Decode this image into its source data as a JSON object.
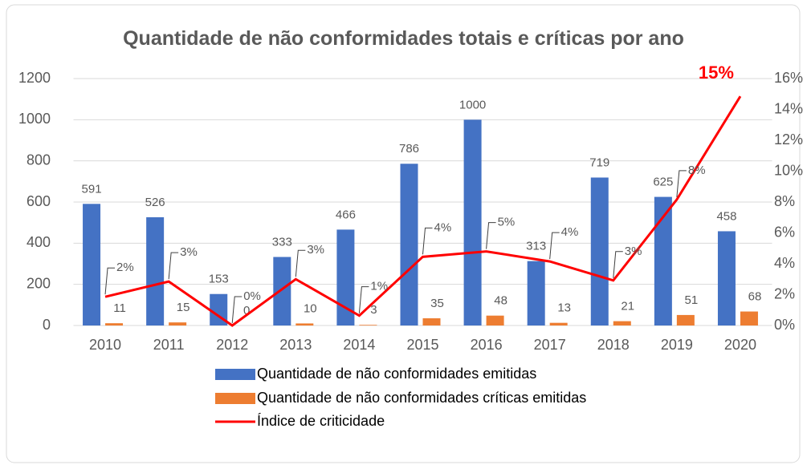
{
  "chart_data": {
    "type": "bar_line",
    "title": "Quantidade de não conformidades totais e críticas por ano",
    "categories": [
      "2010",
      "2011",
      "2012",
      "2013",
      "2014",
      "2015",
      "2016",
      "2017",
      "2018",
      "2019",
      "2020"
    ],
    "series": [
      {
        "name": "Quantidade de não conformidades emitidas",
        "type": "bar",
        "color": "#4472c4",
        "values": [
          591,
          526,
          153,
          333,
          466,
          786,
          1000,
          313,
          719,
          625,
          458
        ]
      },
      {
        "name": "Quantidade de não conformidades críticas emitidas",
        "type": "bar",
        "color": "#ed7d31",
        "values": [
          11,
          15,
          0,
          10,
          3,
          35,
          48,
          13,
          21,
          51,
          68
        ]
      },
      {
        "name": "Índice de criticidade",
        "type": "line",
        "axis": "y2",
        "color": "#ff0000",
        "values": [
          1.86,
          2.85,
          0,
          3.0,
          0.64,
          4.45,
          4.8,
          4.15,
          2.92,
          8.16,
          14.85
        ],
        "value_labels": [
          "2%",
          "3%",
          "0%",
          "3%",
          "1%",
          "4%",
          "5%",
          "4%",
          "3%",
          "8%",
          "15%"
        ]
      }
    ],
    "ylim": [
      0,
      1200
    ],
    "yticks": [
      0,
      200,
      400,
      600,
      800,
      1000,
      1200
    ],
    "y2lim": [
      0,
      16
    ],
    "y2ticks": [
      {
        "value": 0,
        "label": "0%"
      },
      {
        "value": 2,
        "label": "2%"
      },
      {
        "value": 4,
        "label": "4%"
      },
      {
        "value": 6,
        "label": "6%"
      },
      {
        "value": 8,
        "label": "8%"
      },
      {
        "value": 10,
        "label": "10%"
      },
      {
        "value": 12,
        "label": "12%"
      },
      {
        "value": 14,
        "label": "14%"
      },
      {
        "value": 16,
        "label": "16%"
      }
    ],
    "grid": true,
    "legend": "bottom"
  }
}
